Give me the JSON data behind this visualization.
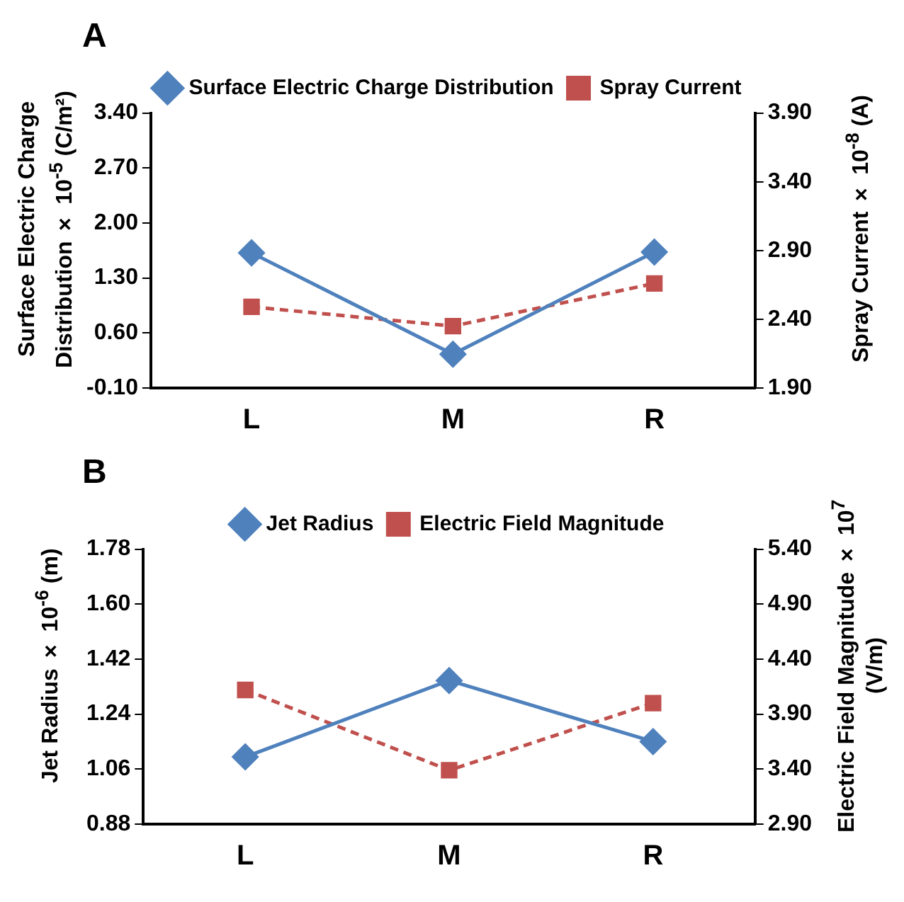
{
  "chart_data": [
    {
      "type": "line",
      "title": "A",
      "categories": [
        "L",
        "M",
        "R"
      ],
      "series": [
        {
          "name": "Surface Electric Charge Distribution",
          "color": "#4f81bd",
          "values": [
            1.62,
            0.33,
            1.63
          ],
          "marker": "diamond",
          "line_style": "solid"
        },
        {
          "name": "Spray Current",
          "color": "#c0504d",
          "values": [
            2.49,
            2.35,
            2.66
          ],
          "axis": "y2",
          "marker": "square",
          "line_style": "dashed"
        }
      ],
      "ylabel": "Surface Electric Charge Distribution × 10$^{-5}$ (C/m²)",
      "y2label": "Spray Current × 10$^{-8}$ (A)",
      "ylim": [
        -0.1,
        3.4
      ],
      "yticks": [
        {
          "value": -0.1,
          "label": "-0.10"
        },
        {
          "value": 0.6,
          "label": "0.60"
        },
        {
          "value": 1.3,
          "label": "1.30"
        },
        {
          "value": 2.0,
          "label": "2.00"
        },
        {
          "value": 2.7,
          "label": "2.70"
        },
        {
          "value": 3.4,
          "label": "3.40"
        }
      ],
      "y2lim": [
        1.9,
        3.9
      ],
      "y2ticks": [
        {
          "value": 1.9,
          "label": "1.90"
        },
        {
          "value": 2.4,
          "label": "2.40"
        },
        {
          "value": 2.9,
          "label": "2.90"
        },
        {
          "value": 3.4,
          "label": "3.40"
        },
        {
          "value": 3.9,
          "label": "3.90"
        }
      ],
      "legend": "top",
      "grid": false
    },
    {
      "type": "line",
      "title": "B",
      "categories": [
        "L",
        "M",
        "R"
      ],
      "series": [
        {
          "name": "Jet Radius",
          "color": "#4f81bd",
          "values": [
            1.1,
            1.35,
            1.15
          ],
          "marker": "diamond",
          "line_style": "solid"
        },
        {
          "name": "Electric Field Magnitude",
          "color": "#c0504d",
          "values": [
            4.12,
            3.39,
            4.0
          ],
          "axis": "y2",
          "marker": "square",
          "line_style": "dashed"
        }
      ],
      "ylabel": "Jet Radius × 10$^{-6}$ (m)",
      "y2label": "Electric Field Magnitude × 10$^{7}$ (V/m)",
      "ylim": [
        0.88,
        1.78
      ],
      "yticks": [
        {
          "value": 0.88,
          "label": "0.88"
        },
        {
          "value": 1.06,
          "label": "1.06"
        },
        {
          "value": 1.24,
          "label": "1.24"
        },
        {
          "value": 1.42,
          "label": "1.42"
        },
        {
          "value": 1.6,
          "label": "1.60"
        },
        {
          "value": 1.78,
          "label": "1.78"
        }
      ],
      "y2lim": [
        2.9,
        5.4
      ],
      "y2ticks": [
        {
          "value": 2.9,
          "label": "2.90"
        },
        {
          "value": 3.4,
          "label": "3.40"
        },
        {
          "value": 3.9,
          "label": "3.90"
        },
        {
          "value": 4.4,
          "label": "4.40"
        },
        {
          "value": 4.9,
          "label": "4.90"
        },
        {
          "value": 5.4,
          "label": "5.40"
        }
      ],
      "legend": "top",
      "grid": false
    }
  ]
}
